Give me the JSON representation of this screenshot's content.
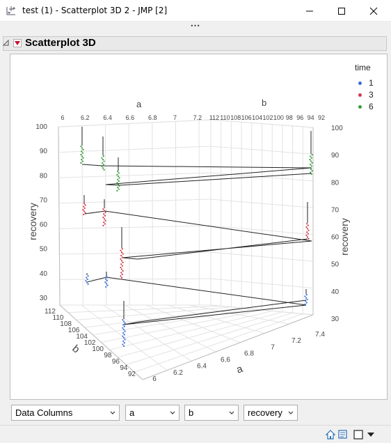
{
  "window": {
    "title": "test (1) - Scatterplot 3D 2 - JMP [2]"
  },
  "icons": {
    "app": "scatter-app-icon",
    "minimize": "minimize-icon",
    "maximize": "maximize-icon",
    "close": "close-icon",
    "grip": "more-dots-icon",
    "disclosure": "disclosure-triangle-icon",
    "red_menu": "red-triangle-menu-icon",
    "home": "home-icon",
    "window_list": "window-list-icon",
    "square": "square-icon",
    "dropdown": "dropdown-arrow-icon"
  },
  "toolbar": {
    "grip_label": "⋯"
  },
  "outline": {
    "title": "Scatterplot 3D"
  },
  "chart_data": {
    "type": "scatter",
    "variables": {
      "x": "a",
      "y": "b",
      "z": "recovery",
      "group": "time"
    },
    "axes": {
      "a": {
        "label": "a",
        "range": [
          6,
          7.4
        ],
        "ticks": [
          "6",
          "6.2",
          "6.4",
          "6.6",
          "6.8",
          "7",
          "7.2",
          "7.4"
        ]
      },
      "b": {
        "label": "b",
        "range": [
          92,
          112
        ],
        "ticks": [
          "112",
          "110",
          "108",
          "106",
          "104",
          "102",
          "100",
          "98",
          "96",
          "94",
          "92"
        ]
      },
      "recovery": {
        "label": "recovery",
        "range": [
          30,
          100
        ],
        "ticks": [
          "30",
          "40",
          "50",
          "60",
          "70",
          "80",
          "90",
          "100"
        ]
      }
    },
    "top_a_ticks": [
      "6",
      "6.2",
      "6.4",
      "6.6",
      "6.8",
      "7",
      "7.2"
    ],
    "top_b_ticks": [
      "112",
      "110",
      "108",
      "106",
      "104",
      "102",
      "100",
      "98",
      "96",
      "94",
      "92"
    ],
    "legend": {
      "title": "time",
      "placement": "top-right",
      "items": [
        {
          "label": "1",
          "color": "#3b6fd4"
        },
        {
          "label": "3",
          "color": "#d2394a"
        },
        {
          "label": "6",
          "color": "#3a9a3a"
        }
      ]
    },
    "series": [
      {
        "name": "1",
        "color": "#3b6fd4",
        "points": [
          {
            "a": 6.0,
            "b": 112,
            "recovery": 38
          },
          {
            "a": 6.3,
            "b": 112,
            "recovery": 40
          },
          {
            "a": 7.4,
            "b": 112,
            "recovery": 37
          },
          {
            "a": 6.1,
            "b": 92,
            "recovery": 40
          }
        ]
      },
      {
        "name": "3",
        "color": "#d2394a",
        "points": [
          {
            "a": 6.0,
            "b": 112,
            "recovery": 62
          },
          {
            "a": 6.3,
            "b": 112,
            "recovery": 63
          },
          {
            "a": 7.4,
            "b": 112,
            "recovery": 62
          },
          {
            "a": 6.5,
            "b": 112,
            "recovery": 51
          }
        ]
      },
      {
        "name": "6",
        "color": "#3a9a3a",
        "points": [
          {
            "a": 6.0,
            "b": 112,
            "recovery": 88
          },
          {
            "a": 6.3,
            "b": 112,
            "recovery": 87
          },
          {
            "a": 7.4,
            "b": 112,
            "recovery": 85
          },
          {
            "a": 6.5,
            "b": 112,
            "recovery": 80
          }
        ]
      }
    ]
  },
  "controls": {
    "data_columns": "Data Columns",
    "x_col": "a",
    "y_col": "b",
    "z_col": "recovery"
  },
  "colors": {
    "blue": "#3b6fd4",
    "red": "#d2394a",
    "green": "#3a9a3a",
    "grid": "#d9d9d9",
    "axis_text": "#444444"
  }
}
